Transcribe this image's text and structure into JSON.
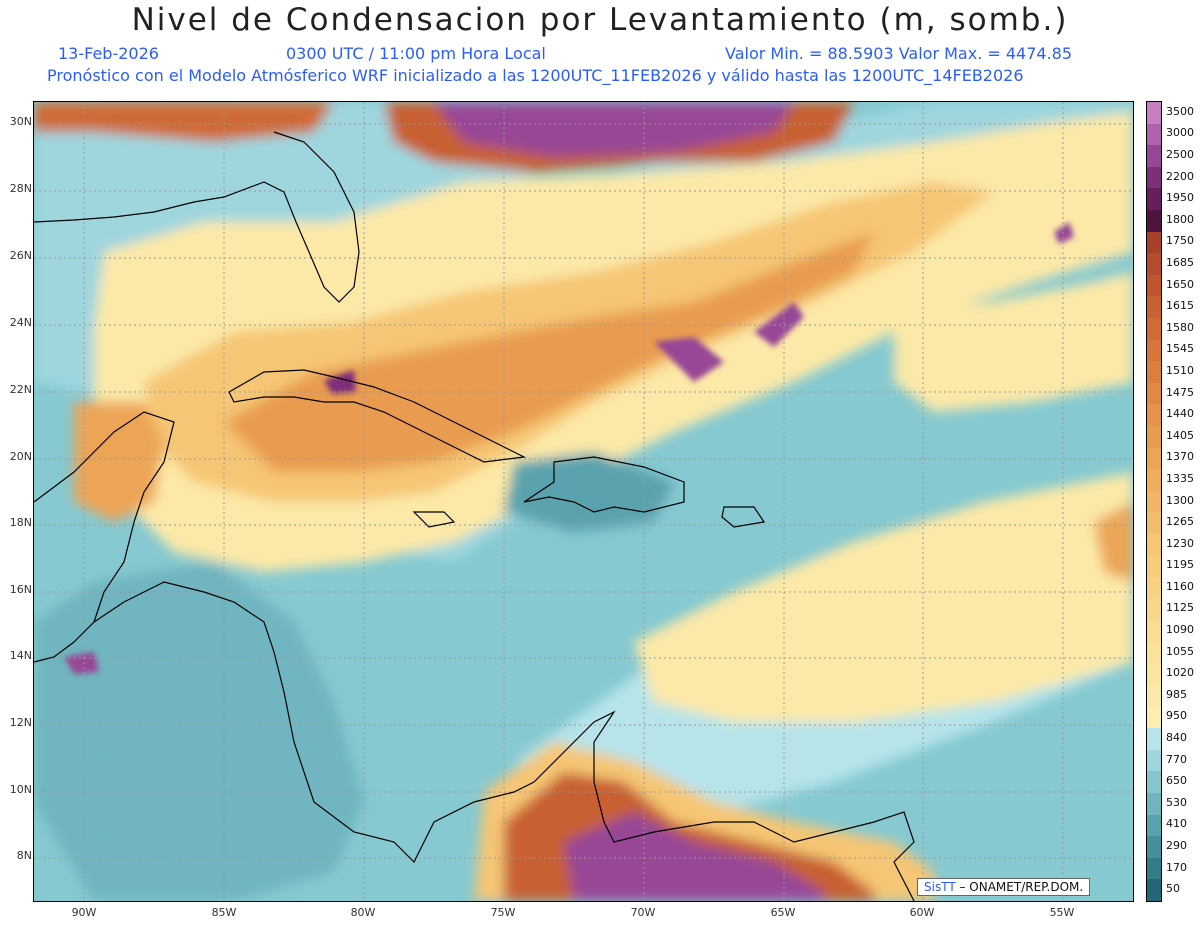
{
  "header": {
    "title": "Nivel de Condensacion por Levantamiento (m, somb.)",
    "date": "13-Feb-2026",
    "time": "0300 UTC / 11:00 pm Hora Local",
    "minmax": "Valor Min. = 88.5903   Valor Max. = 4474.85",
    "model_info": "Pronóstico con el Modelo Atmósferico WRF inicializado a las 1200UTC_11FEB2026 y válido hasta las   1200UTC_14FEB2026"
  },
  "axes": {
    "lat_labels": [
      "30N",
      "28N",
      "26N",
      "24N",
      "22N",
      "20N",
      "18N",
      "16N",
      "14N",
      "12N",
      "10N",
      "8N"
    ],
    "lon_labels": [
      "90W",
      "85W",
      "80W",
      "75W",
      "70W",
      "65W",
      "60W",
      "55W"
    ]
  },
  "legend": {
    "levels": [
      "3500",
      "3000",
      "2500",
      "2200",
      "1950",
      "1800",
      "1750",
      "1685",
      "1650",
      "1615",
      "1580",
      "1545",
      "1510",
      "1475",
      "1440",
      "1405",
      "1370",
      "1335",
      "1300",
      "1265",
      "1230",
      "1195",
      "1160",
      "1125",
      "1090",
      "1055",
      "1020",
      "985",
      "950",
      "840",
      "770",
      "650",
      "530",
      "410",
      "290",
      "170",
      "50"
    ],
    "colors": [
      "#c77fc4",
      "#b062ae",
      "#974796",
      "#7e2f7a",
      "#661f5c",
      "#4e1540",
      "#a8412a",
      "#b44c2d",
      "#bf5630",
      "#c86133",
      "#d06b36",
      "#d6753a",
      "#dc7f3e",
      "#e18944",
      "#e5924a",
      "#e99c50",
      "#eca557",
      "#efae5e",
      "#f1b665",
      "#f3be6c",
      "#f5c674",
      "#f7cc7b",
      "#f8d283",
      "#f9d78a",
      "#fadc92",
      "#fbe199",
      "#fce5a0",
      "#fce9a7",
      "#fdeeb0",
      "#b6e4ea",
      "#9fd6de",
      "#86c7cf",
      "#6fb5bf",
      "#5aa3ae",
      "#468f9c",
      "#347c8a",
      "#236878"
    ]
  },
  "credit": {
    "logo": "SisTT",
    "text": "– ONAMET/REP.DOM."
  },
  "colors": {
    "sea_teal": "#86c9d0",
    "dark_teal": "#5aa3ae",
    "light_cyan": "#b6e4ea",
    "yellow": "#fce9a7",
    "orange": "#eca557",
    "brown": "#c86133",
    "purple": "#974796"
  }
}
